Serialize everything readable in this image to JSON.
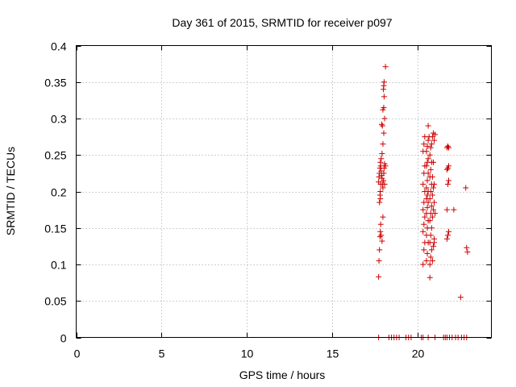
{
  "chart_data": {
    "type": "scatter",
    "title": "Day 361 of 2015, SRMTID for receiver p097",
    "xlabel": "GPS time / hours",
    "ylabel": "SRMTID / TECUs",
    "xlim": [
      0,
      24.3
    ],
    "ylim": [
      0,
      0.4
    ],
    "xticks": [
      0,
      5,
      10,
      15,
      20
    ],
    "yticks": [
      0,
      0.05,
      0.1,
      0.15,
      0.2,
      0.25,
      0.3,
      0.35,
      0.4
    ],
    "xtick_labels": [
      "0",
      "5",
      "10",
      "15",
      "20"
    ],
    "ytick_labels": [
      "0",
      "0.05",
      "0.1",
      "0.15",
      "0.2",
      "0.25",
      "0.3",
      "0.35",
      "0.4"
    ],
    "grid": true,
    "marker": "+",
    "color": "#cc0000",
    "series": [
      {
        "points": [
          [
            17.7,
            0.083
          ],
          [
            17.72,
            0.105
          ],
          [
            17.75,
            0.12
          ],
          [
            17.78,
            0.138
          ],
          [
            17.8,
            0.145
          ],
          [
            17.82,
            0.155
          ],
          [
            17.75,
            0.185
          ],
          [
            17.78,
            0.195
          ],
          [
            17.8,
            0.2
          ],
          [
            17.7,
            0.213
          ],
          [
            17.72,
            0.22
          ],
          [
            17.75,
            0.225
          ],
          [
            17.78,
            0.232
          ],
          [
            17.8,
            0.24
          ],
          [
            17.82,
            0.235
          ],
          [
            17.85,
            0.228
          ],
          [
            17.88,
            0.222
          ],
          [
            17.9,
            0.218
          ],
          [
            17.92,
            0.21
          ],
          [
            17.95,
            0.205
          ],
          [
            17.98,
            0.215
          ],
          [
            18.0,
            0.225
          ],
          [
            18.02,
            0.232
          ],
          [
            18.05,
            0.238
          ],
          [
            17.85,
            0.245
          ],
          [
            17.9,
            0.252
          ],
          [
            17.95,
            0.265
          ],
          [
            18.0,
            0.28
          ],
          [
            17.88,
            0.292
          ],
          [
            17.92,
            0.29
          ],
          [
            18.05,
            0.3
          ],
          [
            17.95,
            0.312
          ],
          [
            18.0,
            0.315
          ],
          [
            18.02,
            0.33
          ],
          [
            17.98,
            0.34
          ],
          [
            18.0,
            0.345
          ],
          [
            18.02,
            0.35
          ],
          [
            18.1,
            0.371
          ],
          [
            17.85,
            0.14
          ],
          [
            17.9,
            0.132
          ],
          [
            17.95,
            0.165
          ],
          [
            18.05,
            0.21
          ],
          [
            18.1,
            0.235
          ],
          [
            17.8,
            0.19
          ],
          [
            17.82,
            0.21
          ],
          [
            20.3,
            0.1
          ],
          [
            20.35,
            0.12
          ],
          [
            20.4,
            0.13
          ],
          [
            20.3,
            0.145
          ],
          [
            20.35,
            0.155
          ],
          [
            20.4,
            0.165
          ],
          [
            20.3,
            0.175
          ],
          [
            20.35,
            0.185
          ],
          [
            20.4,
            0.2
          ],
          [
            20.3,
            0.21
          ],
          [
            20.35,
            0.225
          ],
          [
            20.4,
            0.235
          ],
          [
            20.3,
            0.255
          ],
          [
            20.35,
            0.265
          ],
          [
            20.4,
            0.275
          ],
          [
            20.5,
            0.105
          ],
          [
            20.55,
            0.115
          ],
          [
            20.6,
            0.13
          ],
          [
            20.5,
            0.14
          ],
          [
            20.55,
            0.15
          ],
          [
            20.6,
            0.16
          ],
          [
            20.5,
            0.17
          ],
          [
            20.55,
            0.178
          ],
          [
            20.6,
            0.185
          ],
          [
            20.5,
            0.19
          ],
          [
            20.55,
            0.195
          ],
          [
            20.6,
            0.2
          ],
          [
            20.5,
            0.205
          ],
          [
            20.55,
            0.215
          ],
          [
            20.6,
            0.225
          ],
          [
            20.5,
            0.235
          ],
          [
            20.55,
            0.24
          ],
          [
            20.6,
            0.245
          ],
          [
            20.5,
            0.255
          ],
          [
            20.55,
            0.262
          ],
          [
            20.6,
            0.27
          ],
          [
            20.65,
            0.275
          ],
          [
            20.6,
            0.29
          ],
          [
            20.7,
            0.082
          ],
          [
            20.7,
            0.1
          ],
          [
            20.75,
            0.11
          ],
          [
            20.8,
            0.12
          ],
          [
            20.7,
            0.13
          ],
          [
            20.75,
            0.14
          ],
          [
            20.8,
            0.15
          ],
          [
            20.7,
            0.16
          ],
          [
            20.75,
            0.17
          ],
          [
            20.8,
            0.18
          ],
          [
            20.7,
            0.19
          ],
          [
            20.75,
            0.2
          ],
          [
            20.8,
            0.21
          ],
          [
            20.7,
            0.22
          ],
          [
            20.75,
            0.23
          ],
          [
            20.8,
            0.24
          ],
          [
            20.7,
            0.25
          ],
          [
            20.75,
            0.26
          ],
          [
            20.8,
            0.265
          ],
          [
            20.85,
            0.275
          ],
          [
            20.9,
            0.28
          ],
          [
            20.85,
            0.105
          ],
          [
            20.9,
            0.125
          ],
          [
            20.95,
            0.135
          ],
          [
            20.85,
            0.165
          ],
          [
            20.9,
            0.175
          ],
          [
            20.95,
            0.185
          ],
          [
            20.85,
            0.195
          ],
          [
            20.9,
            0.205
          ],
          [
            20.95,
            0.21
          ],
          [
            20.85,
            0.22
          ],
          [
            20.9,
            0.24
          ],
          [
            20.95,
            0.27
          ],
          [
            21.0,
            0.278
          ],
          [
            20.95,
            0.13
          ],
          [
            21.0,
            0.17
          ],
          [
            21.7,
            0.135
          ],
          [
            21.75,
            0.14
          ],
          [
            21.8,
            0.145
          ],
          [
            21.7,
            0.175
          ],
          [
            21.75,
            0.21
          ],
          [
            21.8,
            0.215
          ],
          [
            21.7,
            0.23
          ],
          [
            21.75,
            0.232
          ],
          [
            21.8,
            0.235
          ],
          [
            21.7,
            0.26
          ],
          [
            21.75,
            0.262
          ],
          [
            21.8,
            0.26
          ],
          [
            22.1,
            0.175
          ],
          [
            22.5,
            0.055
          ],
          [
            22.8,
            0.205
          ],
          [
            22.85,
            0.123
          ],
          [
            22.9,
            0.117
          ],
          [
            17.7,
            0
          ],
          [
            18.3,
            0
          ],
          [
            18.45,
            0
          ],
          [
            18.6,
            0
          ],
          [
            18.75,
            0
          ],
          [
            18.9,
            0
          ],
          [
            19.3,
            0
          ],
          [
            19.45,
            0
          ],
          [
            19.6,
            0
          ],
          [
            20.2,
            0
          ],
          [
            20.3,
            0
          ],
          [
            20.6,
            0
          ],
          [
            21.0,
            0
          ],
          [
            21.5,
            0
          ],
          [
            21.6,
            0
          ],
          [
            21.7,
            0
          ],
          [
            21.85,
            0
          ],
          [
            22.0,
            0
          ],
          [
            22.2,
            0
          ],
          [
            22.35,
            0
          ],
          [
            22.55,
            0
          ],
          [
            22.7,
            0
          ],
          [
            22.85,
            0
          ]
        ]
      }
    ]
  }
}
